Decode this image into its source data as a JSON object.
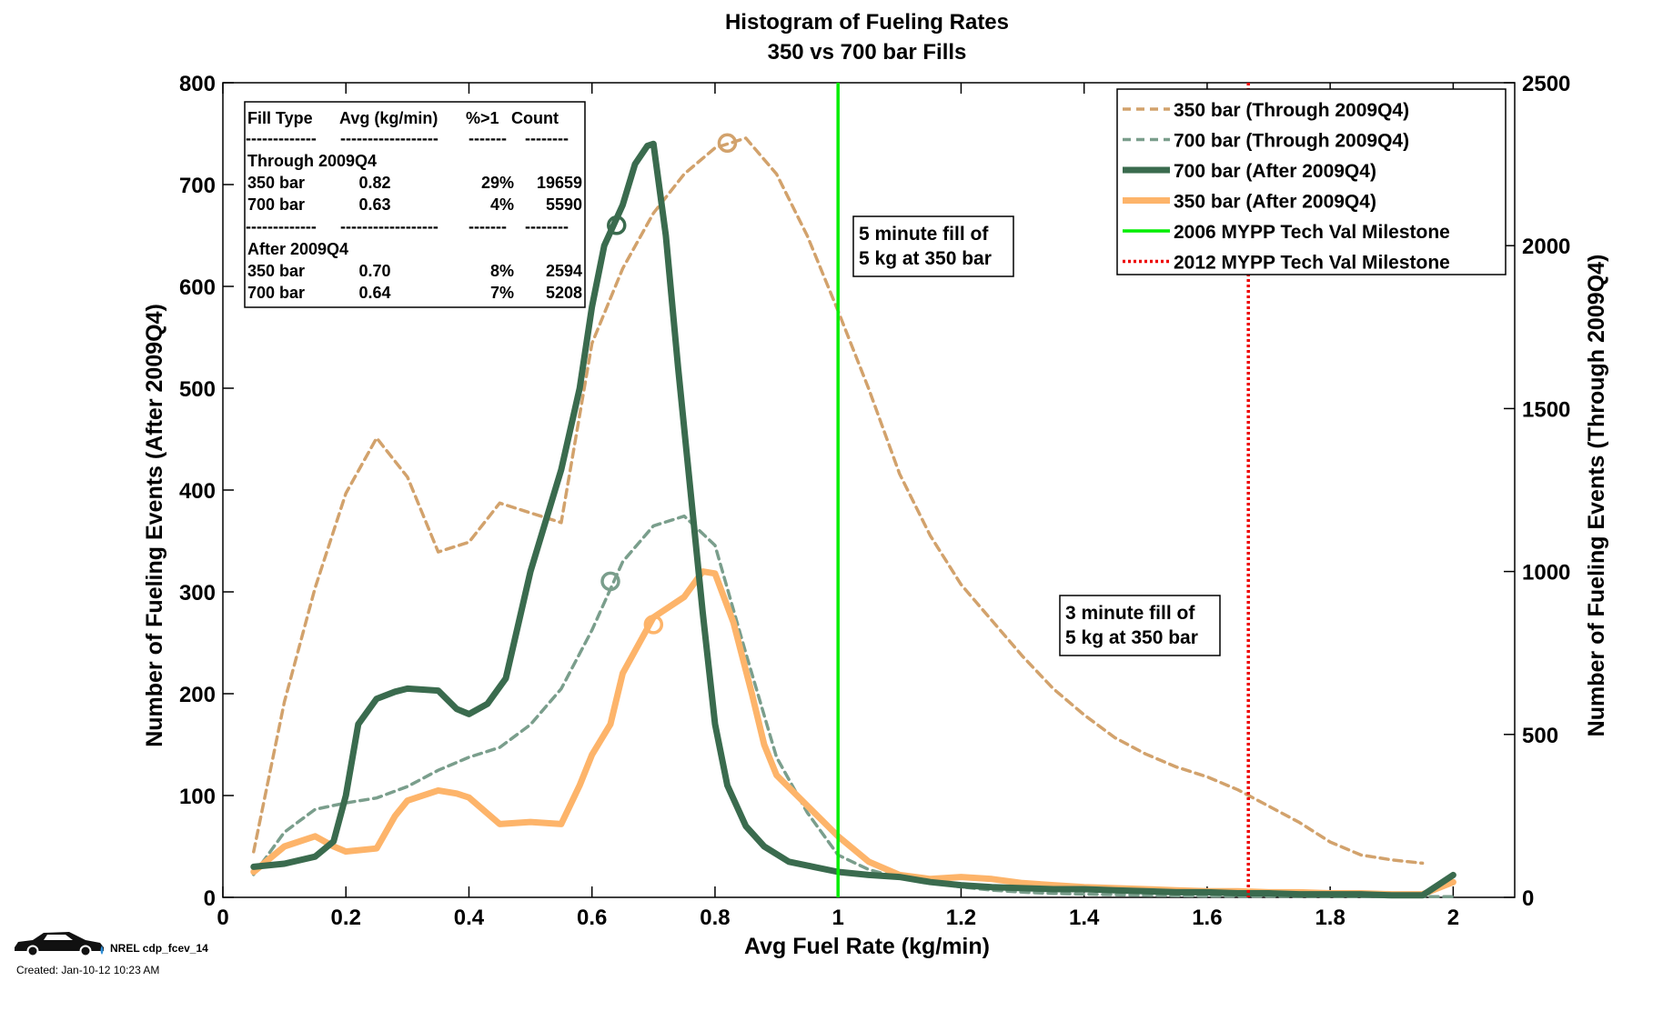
{
  "chart_data": {
    "type": "line",
    "title": "Histogram of Fueling Rates",
    "subtitle": "350 vs 700 bar Fills",
    "xlabel": "Avg Fuel Rate (kg/min)",
    "ylabel_left": "Number of Fueling Events (After 2009Q4)",
    "ylabel_right": "Number of Fueling Events (Through 2009Q4)",
    "xlim": [
      0,
      2.1
    ],
    "ylim_left": [
      0,
      800
    ],
    "ylim_right": [
      0,
      2500
    ],
    "x_ticks": [
      "0",
      "0.2",
      "0.4",
      "0.6",
      "0.8",
      "1",
      "1.2",
      "1.4",
      "1.6",
      "1.8",
      "2"
    ],
    "y_left_ticks": [
      "0",
      "100",
      "200",
      "300",
      "400",
      "500",
      "600",
      "700",
      "800"
    ],
    "y_right_ticks": [
      "0",
      "500",
      "1000",
      "1500",
      "2000",
      "2500"
    ],
    "grid": false,
    "legend_position": "top-right",
    "legend": [
      "350 bar (Through 2009Q4)",
      "700 bar (Through 2009Q4)",
      "700 bar (After 2009Q4)",
      "350 bar (After 2009Q4)",
      "2006 MYPP Tech Val Milestone",
      "2012 MYPP Tech Val Milestone"
    ],
    "series": [
      {
        "name": "350 bar (Through 2009Q4)",
        "axis": "right",
        "style": "dashed",
        "color": "#d2a26c",
        "x": [
          0.05,
          0.1,
          0.15,
          0.2,
          0.25,
          0.3,
          0.35,
          0.4,
          0.45,
          0.5,
          0.55,
          0.6,
          0.65,
          0.7,
          0.75,
          0.8,
          0.85,
          0.9,
          0.95,
          1.0,
          1.05,
          1.1,
          1.15,
          1.2,
          1.25,
          1.3,
          1.35,
          1.4,
          1.45,
          1.5,
          1.55,
          1.6,
          1.65,
          1.7,
          1.75,
          1.8,
          1.85,
          1.9,
          1.95
        ],
        "y": [
          140,
          600,
          950,
          1240,
          1410,
          1290,
          1060,
          1090,
          1210,
          1180,
          1150,
          1700,
          1930,
          2100,
          2220,
          2300,
          2330,
          2220,
          2030,
          1800,
          1560,
          1300,
          1110,
          960,
          850,
          740,
          640,
          560,
          490,
          440,
          400,
          370,
          330,
          280,
          230,
          170,
          130,
          115,
          105
        ],
        "marker": {
          "x": 0.82,
          "y": 2315
        }
      },
      {
        "name": "700 bar (Through 2009Q4)",
        "axis": "right",
        "style": "dashed",
        "color": "#7a9e8c",
        "x": [
          0.05,
          0.1,
          0.15,
          0.2,
          0.25,
          0.3,
          0.35,
          0.4,
          0.45,
          0.5,
          0.55,
          0.6,
          0.65,
          0.7,
          0.75,
          0.8,
          0.85,
          0.9,
          0.95,
          1.0,
          1.05,
          1.1,
          1.15,
          1.2,
          1.25,
          1.3,
          1.35,
          1.4,
          1.45,
          1.5,
          1.6,
          1.7,
          1.8,
          1.9,
          2.0
        ],
        "y": [
          70,
          200,
          270,
          290,
          305,
          340,
          390,
          430,
          460,
          530,
          640,
          820,
          1030,
          1140,
          1170,
          1080,
          750,
          430,
          260,
          130,
          85,
          60,
          45,
          32,
          22,
          16,
          12,
          10,
          8,
          6,
          4,
          3,
          2,
          2,
          2
        ],
        "marker": {
          "x": 0.63,
          "y": 970
        }
      },
      {
        "name": "700 bar (After 2009Q4)",
        "axis": "left",
        "style": "solid",
        "color": "#3a6b4e",
        "x": [
          0.05,
          0.1,
          0.15,
          0.18,
          0.2,
          0.22,
          0.25,
          0.28,
          0.3,
          0.35,
          0.38,
          0.4,
          0.43,
          0.46,
          0.5,
          0.55,
          0.58,
          0.6,
          0.62,
          0.65,
          0.67,
          0.69,
          0.7,
          0.72,
          0.74,
          0.76,
          0.78,
          0.8,
          0.82,
          0.85,
          0.88,
          0.92,
          0.96,
          1.0,
          1.05,
          1.1,
          1.15,
          1.2,
          1.25,
          1.3,
          1.35,
          1.4,
          1.45,
          1.5,
          1.55,
          1.6,
          1.65,
          1.7,
          1.75,
          1.8,
          1.85,
          1.9,
          1.95,
          2.0
        ],
        "y": [
          30,
          33,
          40,
          55,
          100,
          170,
          195,
          202,
          205,
          203,
          185,
          180,
          190,
          215,
          320,
          420,
          500,
          580,
          640,
          680,
          720,
          738,
          740,
          650,
          520,
          400,
          280,
          170,
          110,
          70,
          50,
          35,
          30,
          25,
          22,
          20,
          15,
          12,
          10,
          9,
          8,
          8,
          7,
          6,
          5,
          5,
          4,
          4,
          3,
          3,
          3,
          2,
          2,
          22
        ],
        "marker": {
          "x": 0.64,
          "y": 660
        }
      },
      {
        "name": "350 bar (After 2009Q4)",
        "axis": "left",
        "style": "solid",
        "color": "#fdb46a",
        "x": [
          0.05,
          0.1,
          0.15,
          0.18,
          0.2,
          0.25,
          0.28,
          0.3,
          0.35,
          0.38,
          0.4,
          0.45,
          0.5,
          0.55,
          0.58,
          0.6,
          0.63,
          0.65,
          0.7,
          0.75,
          0.78,
          0.8,
          0.83,
          0.86,
          0.88,
          0.9,
          0.95,
          1.0,
          1.05,
          1.1,
          1.15,
          1.2,
          1.25,
          1.3,
          1.35,
          1.4,
          1.45,
          1.5,
          1.55,
          1.6,
          1.65,
          1.7,
          1.75,
          1.8,
          1.85,
          1.9,
          1.95,
          2.0
        ],
        "y": [
          25,
          50,
          60,
          50,
          45,
          48,
          80,
          95,
          105,
          102,
          98,
          72,
          74,
          72,
          110,
          140,
          170,
          220,
          275,
          295,
          320,
          318,
          270,
          200,
          150,
          120,
          90,
          60,
          35,
          22,
          18,
          20,
          18,
          14,
          12,
          10,
          9,
          8,
          7,
          6,
          6,
          5,
          5,
          4,
          4,
          3,
          3,
          15
        ],
        "marker": {
          "x": 0.7,
          "y": 268
        }
      },
      {
        "name": "2006 MYPP Tech Val Milestone",
        "type": "vline",
        "x": 1.0,
        "style": "solid",
        "color": "#00ee00"
      },
      {
        "name": "2012 MYPP Tech Val Milestone",
        "type": "vline",
        "x": 1.667,
        "style": "dotted",
        "color": "#ee0000"
      }
    ],
    "annotations": [
      {
        "lines": [
          "5 minute fill of",
          "5 kg at 350 bar"
        ]
      },
      {
        "lines": [
          "3 minute fill of",
          "5 kg at 350 bar"
        ]
      }
    ],
    "summary_table": {
      "headers": [
        "Fill Type",
        "Avg (kg/min)",
        "%>1",
        "Count"
      ],
      "separator": [
        "-------------",
        "------------------",
        "-------",
        "--------"
      ],
      "groups": [
        {
          "label": "Through 2009Q4",
          "rows": [
            [
              "350 bar",
              "0.82",
              "29%",
              "19659"
            ],
            [
              "700 bar",
              "0.63",
              "4%",
              "5590"
            ]
          ]
        },
        {
          "label": "After 2009Q4",
          "rows": [
            [
              "350 bar",
              "0.70",
              "8%",
              "2594"
            ],
            [
              "700 bar",
              "0.64",
              "7%",
              "5208"
            ]
          ]
        }
      ]
    }
  },
  "footer": {
    "tag": "NREL cdp_fcev_14",
    "created": "Created: Jan-10-12 10:23 AM",
    "logo_icon": "car-icon"
  }
}
